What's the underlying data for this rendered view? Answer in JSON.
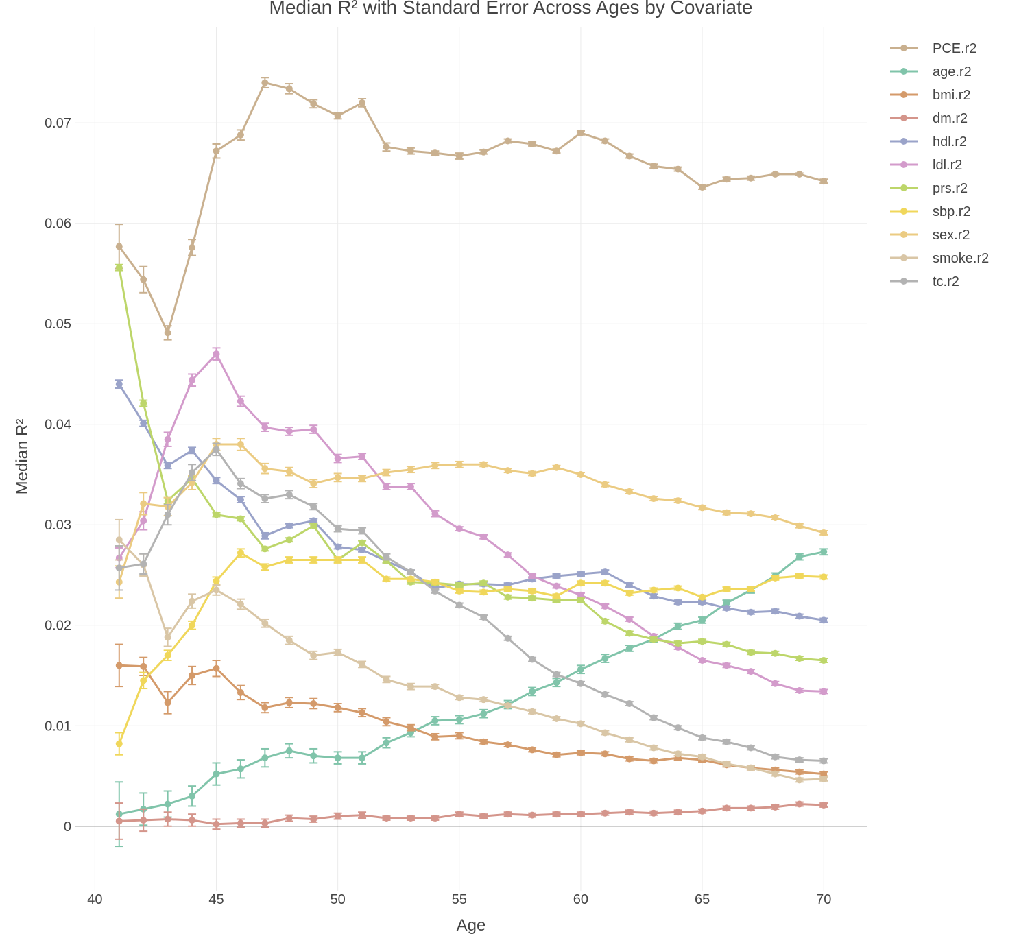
{
  "chart_data": {
    "type": "line",
    "title": "Median R² with Standard Error Across Ages by Covariate",
    "xlabel": "Age",
    "ylabel": "Median R²",
    "xlim": [
      39.2,
      71.8
    ],
    "ylim": [
      -0.0065,
      0.0795
    ],
    "xticks": [
      40,
      45,
      50,
      55,
      60,
      65,
      70
    ],
    "yticks": [
      0,
      0.01,
      0.02,
      0.03,
      0.04,
      0.05,
      0.06,
      0.07
    ],
    "ytick_labels": [
      "0",
      "0.01",
      "0.02",
      "0.03",
      "0.04",
      "0.05",
      "0.06",
      "0.07"
    ],
    "grid": true,
    "legend_position": "top-right",
    "x": [
      41,
      42,
      43,
      44,
      45,
      46,
      47,
      48,
      49,
      50,
      51,
      52,
      53,
      54,
      55,
      56,
      57,
      58,
      59,
      60,
      61,
      62,
      63,
      64,
      65,
      66,
      67,
      68,
      69,
      70
    ],
    "series": [
      {
        "name": "PCE.r2",
        "color": "#c9b08f",
        "values": [
          0.0577,
          0.0544,
          0.0491,
          0.0576,
          0.0672,
          0.0688,
          0.074,
          0.0734,
          0.0719,
          0.0707,
          0.072,
          0.0676,
          0.0672,
          0.067,
          0.0667,
          0.0671,
          0.0682,
          0.0679,
          0.0672,
          0.069,
          0.0682,
          0.0667,
          0.0657,
          0.0654,
          0.0636,
          0.0644,
          0.0645,
          0.0649,
          0.0649,
          0.0642
        ],
        "errors": [
          0.0022,
          0.0013,
          0.0007,
          0.0008,
          0.0007,
          0.0005,
          0.0005,
          0.0005,
          0.0004,
          0.0003,
          0.0004,
          0.0004,
          0.0003,
          0.0002,
          0.0003,
          0.0002,
          0.0002,
          0.0002,
          0.0002,
          0.0002,
          0.0002,
          0.0002,
          0.0002,
          0.0002,
          0.0002,
          0.0002,
          0.0002,
          0.0001,
          0.0001,
          0.0002
        ]
      },
      {
        "name": "age.r2",
        "color": "#80c4aa",
        "values": [
          0.0012,
          0.0017,
          0.0022,
          0.003,
          0.0052,
          0.0057,
          0.0068,
          0.0075,
          0.007,
          0.0068,
          0.0068,
          0.0083,
          0.0093,
          0.0105,
          0.0106,
          0.0112,
          0.0121,
          0.0134,
          0.0143,
          0.0156,
          0.0167,
          0.0177,
          0.0186,
          0.0199,
          0.0205,
          0.0222,
          0.0235,
          0.0249,
          0.0268,
          0.0273
        ],
        "errors": [
          0.0032,
          0.0016,
          0.0013,
          0.001,
          0.0011,
          0.0009,
          0.0009,
          0.0007,
          0.0007,
          0.0006,
          0.0006,
          0.0005,
          0.0004,
          0.0004,
          0.0004,
          0.0004,
          0.0004,
          0.0004,
          0.0004,
          0.0004,
          0.0004,
          0.0003,
          0.0003,
          0.0003,
          0.0003,
          0.0003,
          0.0003,
          0.0003,
          0.0003,
          0.0003
        ]
      },
      {
        "name": "bmi.r2",
        "color": "#d49a6a",
        "values": [
          0.016,
          0.0159,
          0.0123,
          0.015,
          0.0157,
          0.0133,
          0.0118,
          0.0123,
          0.0122,
          0.0118,
          0.0113,
          0.0104,
          0.0098,
          0.0089,
          0.009,
          0.0084,
          0.0081,
          0.0076,
          0.0071,
          0.0073,
          0.0072,
          0.0067,
          0.0065,
          0.0068,
          0.0066,
          0.0061,
          0.0058,
          0.0056,
          0.0054,
          0.0052
        ],
        "errors": [
          0.0021,
          0.0009,
          0.0011,
          0.0009,
          0.0008,
          0.0007,
          0.0005,
          0.0005,
          0.0005,
          0.0004,
          0.0004,
          0.0004,
          0.0003,
          0.0003,
          0.0003,
          0.0002,
          0.0002,
          0.0002,
          0.0002,
          0.0002,
          0.0002,
          0.0002,
          0.0002,
          0.0002,
          0.0002,
          0.0002,
          0.0002,
          0.0002,
          0.0002,
          0.0002
        ]
      },
      {
        "name": "dm.r2",
        "color": "#d4958b",
        "values": [
          0.0005,
          0.0006,
          0.0007,
          0.0006,
          0.0002,
          0.0003,
          0.0003,
          0.0008,
          0.0007,
          0.001,
          0.0011,
          0.0008,
          0.0008,
          0.0008,
          0.0012,
          0.001,
          0.0012,
          0.0011,
          0.0012,
          0.0012,
          0.0013,
          0.0014,
          0.0013,
          0.0014,
          0.0015,
          0.0018,
          0.0018,
          0.0019,
          0.0022,
          0.0021
        ],
        "errors": [
          0.0018,
          0.0011,
          0.0007,
          0.0006,
          0.0005,
          0.0004,
          0.0004,
          0.0003,
          0.0003,
          0.0003,
          0.0003,
          0.0002,
          0.0002,
          0.0002,
          0.0002,
          0.0002,
          0.0002,
          0.0002,
          0.0002,
          0.0002,
          0.0002,
          0.0002,
          0.0002,
          0.0002,
          0.0002,
          0.0002,
          0.0002,
          0.0002,
          0.0002,
          0.0002
        ]
      },
      {
        "name": "hdl.r2",
        "color": "#9aa3c9",
        "values": [
          0.044,
          0.0401,
          0.0359,
          0.0374,
          0.0344,
          0.0325,
          0.0289,
          0.0299,
          0.0304,
          0.0278,
          0.0275,
          0.0264,
          0.0253,
          0.0237,
          0.0241,
          0.0241,
          0.024,
          0.0246,
          0.0249,
          0.0251,
          0.0253,
          0.024,
          0.0229,
          0.0223,
          0.0223,
          0.0217,
          0.0213,
          0.0214,
          0.0209,
          0.0205
        ],
        "errors": [
          0.0004,
          0.0003,
          0.0003,
          0.0003,
          0.0003,
          0.0003,
          0.0003,
          0.0002,
          0.0002,
          0.0002,
          0.0002,
          0.0002,
          0.0002,
          0.0002,
          0.0002,
          0.0002,
          0.0002,
          0.0002,
          0.0002,
          0.0002,
          0.0002,
          0.0002,
          0.0002,
          0.0002,
          0.0002,
          0.0002,
          0.0002,
          0.0002,
          0.0002,
          0.0002
        ]
      },
      {
        "name": "ldl.r2",
        "color": "#d39bcb",
        "values": [
          0.0267,
          0.0304,
          0.0385,
          0.0444,
          0.047,
          0.0423,
          0.0397,
          0.0393,
          0.0395,
          0.0366,
          0.0368,
          0.0338,
          0.0338,
          0.0311,
          0.0296,
          0.0288,
          0.027,
          0.0249,
          0.0239,
          0.023,
          0.0219,
          0.0206,
          0.0189,
          0.0178,
          0.0165,
          0.016,
          0.0154,
          0.0142,
          0.0135,
          0.0134
        ],
        "errors": [
          0.001,
          0.0009,
          0.0007,
          0.0006,
          0.0006,
          0.0005,
          0.0004,
          0.0004,
          0.0004,
          0.0004,
          0.0003,
          0.0003,
          0.0003,
          0.0003,
          0.0002,
          0.0002,
          0.0002,
          0.0002,
          0.0002,
          0.0002,
          0.0002,
          0.0002,
          0.0002,
          0.0002,
          0.0002,
          0.0002,
          0.0002,
          0.0002,
          0.0002,
          0.0002
        ]
      },
      {
        "name": "prs.r2",
        "color": "#bdd66a",
        "values": [
          0.0556,
          0.0421,
          0.0324,
          0.0346,
          0.031,
          0.0306,
          0.0276,
          0.0285,
          0.0299,
          0.0265,
          0.0282,
          0.0264,
          0.0243,
          0.0242,
          0.024,
          0.0242,
          0.0228,
          0.0227,
          0.0225,
          0.0225,
          0.0204,
          0.0192,
          0.0186,
          0.0182,
          0.0184,
          0.0181,
          0.0173,
          0.0172,
          0.0167,
          0.0165
        ],
        "errors": [
          0.0003,
          0.0003,
          0.0003,
          0.0002,
          0.0002,
          0.0002,
          0.0002,
          0.0002,
          0.0002,
          0.0002,
          0.0002,
          0.0002,
          0.0002,
          0.0002,
          0.0002,
          0.0002,
          0.0002,
          0.0002,
          0.0002,
          0.0002,
          0.0002,
          0.0002,
          0.0002,
          0.0002,
          0.0002,
          0.0002,
          0.0002,
          0.0002,
          0.0002,
          0.0002
        ]
      },
      {
        "name": "sbp.r2",
        "color": "#f0d75b",
        "values": [
          0.0082,
          0.0145,
          0.017,
          0.02,
          0.0244,
          0.0272,
          0.0258,
          0.0265,
          0.0265,
          0.0265,
          0.0265,
          0.0246,
          0.0246,
          0.0243,
          0.0234,
          0.0233,
          0.0236,
          0.0234,
          0.0229,
          0.0242,
          0.0242,
          0.0232,
          0.0235,
          0.0237,
          0.0228,
          0.0236,
          0.0236,
          0.0247,
          0.0249,
          0.0248
        ],
        "errors": [
          0.0011,
          0.0008,
          0.0005,
          0.0004,
          0.0004,
          0.0004,
          0.0003,
          0.0003,
          0.0003,
          0.0003,
          0.0003,
          0.0002,
          0.0002,
          0.0002,
          0.0002,
          0.0002,
          0.0002,
          0.0002,
          0.0002,
          0.0002,
          0.0002,
          0.0002,
          0.0002,
          0.0002,
          0.0002,
          0.0002,
          0.0002,
          0.0002,
          0.0002,
          0.0002
        ]
      },
      {
        "name": "sex.r2",
        "color": "#ebcb82",
        "values": [
          0.0243,
          0.0321,
          0.0318,
          0.0342,
          0.038,
          0.038,
          0.0356,
          0.0353,
          0.0341,
          0.0347,
          0.0346,
          0.0352,
          0.0355,
          0.0359,
          0.036,
          0.036,
          0.0354,
          0.0351,
          0.0357,
          0.035,
          0.034,
          0.0333,
          0.0326,
          0.0324,
          0.0317,
          0.0312,
          0.0311,
          0.0307,
          0.0299,
          0.0292
        ],
        "errors": [
          0.0016,
          0.0011,
          0.0009,
          0.0007,
          0.0006,
          0.0006,
          0.0005,
          0.0004,
          0.0004,
          0.0004,
          0.0003,
          0.0003,
          0.0003,
          0.0003,
          0.0003,
          0.0002,
          0.0002,
          0.0002,
          0.0002,
          0.0002,
          0.0002,
          0.0002,
          0.0002,
          0.0002,
          0.0002,
          0.0002,
          0.0002,
          0.0002,
          0.0002,
          0.0002
        ]
      },
      {
        "name": "smoke.r2",
        "color": "#d9c6a6",
        "values": [
          0.0285,
          0.026,
          0.0188,
          0.0224,
          0.0235,
          0.0221,
          0.0202,
          0.0185,
          0.017,
          0.0173,
          0.0161,
          0.0146,
          0.0139,
          0.0139,
          0.0128,
          0.0126,
          0.012,
          0.0114,
          0.0107,
          0.0102,
          0.0093,
          0.0086,
          0.0078,
          0.0072,
          0.0069,
          0.0062,
          0.0058,
          0.0052,
          0.0046,
          0.0047
        ],
        "errors": [
          0.002,
          0.0011,
          0.0009,
          0.0007,
          0.0005,
          0.0005,
          0.0004,
          0.0004,
          0.0004,
          0.0003,
          0.0003,
          0.0003,
          0.0003,
          0.0002,
          0.0002,
          0.0002,
          0.0002,
          0.0002,
          0.0002,
          0.0002,
          0.0002,
          0.0002,
          0.0002,
          0.0002,
          0.0002,
          0.0002,
          0.0002,
          0.0002,
          0.0002,
          0.0002
        ]
      },
      {
        "name": "tc.r2",
        "color": "#b3b3b3",
        "values": [
          0.0257,
          0.0261,
          0.031,
          0.0352,
          0.0375,
          0.0341,
          0.0326,
          0.033,
          0.0318,
          0.0296,
          0.0294,
          0.0268,
          0.0253,
          0.0234,
          0.022,
          0.0208,
          0.0187,
          0.0166,
          0.0151,
          0.0142,
          0.0131,
          0.0122,
          0.0108,
          0.0098,
          0.0088,
          0.0084,
          0.0078,
          0.0069,
          0.0066,
          0.0065
        ],
        "errors": [
          0.0022,
          0.001,
          0.001,
          0.0008,
          0.0006,
          0.0005,
          0.0004,
          0.0004,
          0.0003,
          0.0003,
          0.0003,
          0.0003,
          0.0002,
          0.0002,
          0.0002,
          0.0002,
          0.0002,
          0.0002,
          0.0002,
          0.0002,
          0.0002,
          0.0002,
          0.0002,
          0.0002,
          0.0002,
          0.0002,
          0.0002,
          0.0002,
          0.0002,
          0.0002
        ]
      }
    ]
  }
}
